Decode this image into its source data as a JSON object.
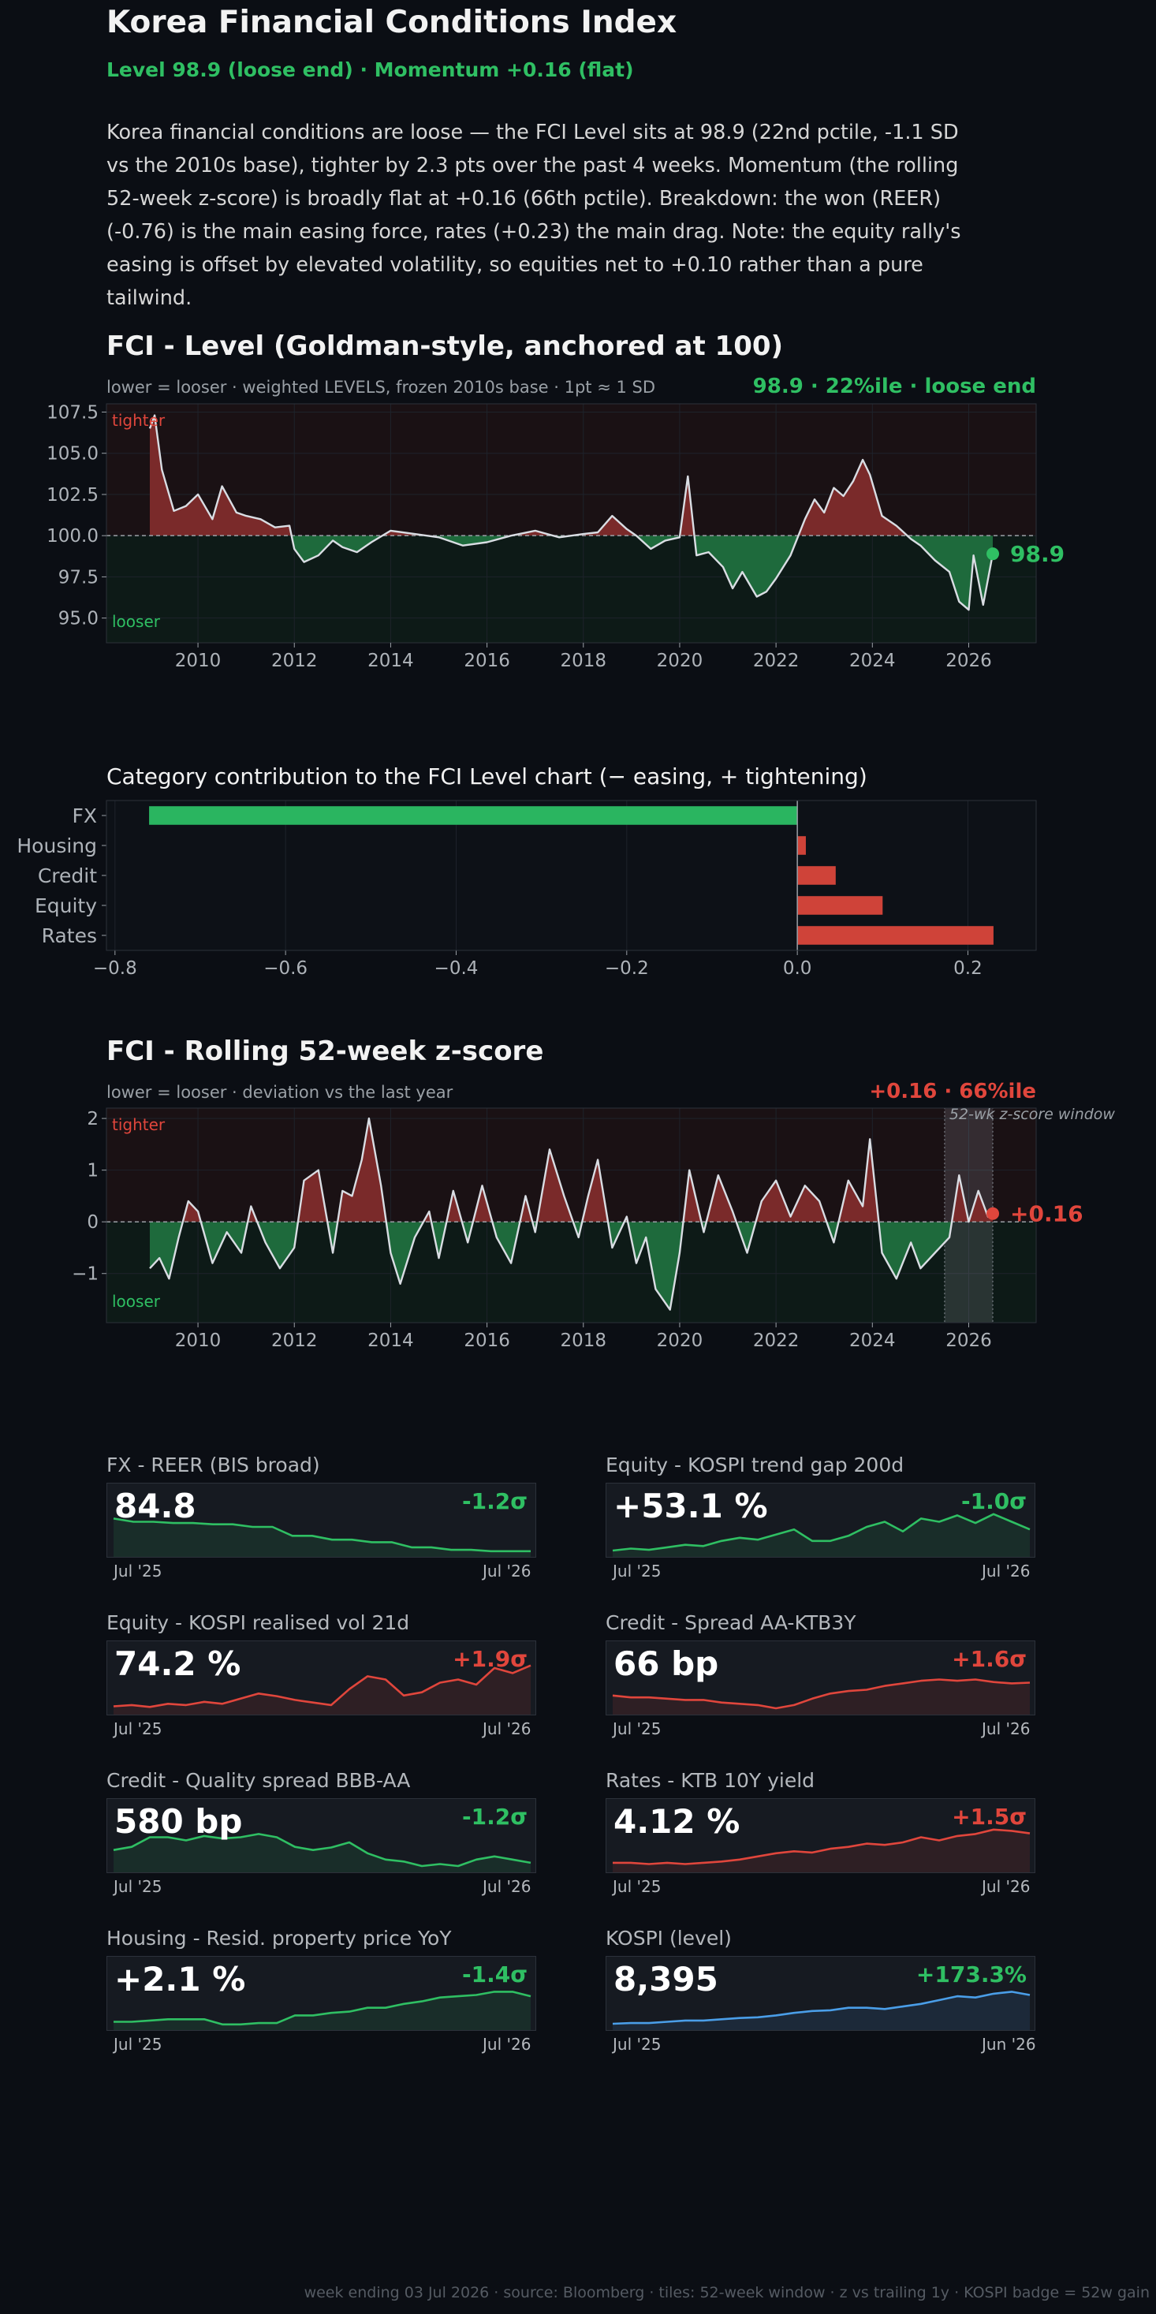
{
  "header": {
    "title": "Korea Financial Conditions Index",
    "subtitle": "Level 98.9 (loose end)   ·   Momentum +0.16 (flat)",
    "summary": "Korea financial conditions are loose — the FCI Level sits at 98.9 (22nd pctile, -1.1 SD vs the 2010s base), tighter by 2.3 pts over the past 4 weeks. Momentum (the rolling 52-week z-score) is broadly flat at +0.16 (66th pctile). Breakdown: the won (REER) (-0.76) is the main easing force, rates (+0.23) the main drag. Note: the equity rally's easing is offset by elevated volatility, so equities net to +0.10 rather than a pure tailwind."
  },
  "colors": {
    "loose": "#2fbf63",
    "tight": "#e0463c",
    "line": "#d9dde3",
    "kospi": "#4a9ee8",
    "background": "#0b0e14"
  },
  "level_chart": {
    "title": "FCI - Level (Goldman-style, anchored at 100)",
    "caption": "lower = looser · weighted LEVELS, frozen 2010s base · 1pt ≈ 1 SD",
    "badge": "98.9 · 22%ile · loose end",
    "tighter_label": "tighter",
    "looser_label": "looser",
    "end_label": "98.9"
  },
  "contrib_chart": {
    "title": "Category contribution to the FCI Level chart  (− easing, + tightening)"
  },
  "z_chart": {
    "title": "FCI - Rolling 52-week z-score",
    "caption": "lower = looser · deviation vs the last year",
    "badge": "+0.16 · 66%ile",
    "tighter_label": "tighter",
    "looser_label": "looser",
    "window_label": "52-wk z-score window",
    "end_label": "+0.16"
  },
  "chart_data": [
    {
      "type": "area",
      "name": "level",
      "title": "FCI - Level (Goldman-style, anchored at 100)",
      "baseline": 100,
      "ylim": [
        93.5,
        108
      ],
      "yticks": [
        "95.0",
        "97.5",
        "100.0",
        "102.5",
        "105.0",
        "107.5"
      ],
      "xlim": [
        2008.1,
        2027.4
      ],
      "xticks": [
        "2010",
        "2012",
        "2014",
        "2016",
        "2018",
        "2020",
        "2022",
        "2024",
        "2026"
      ],
      "x": [
        2009.0,
        2009.1,
        2009.25,
        2009.5,
        2009.75,
        2010.0,
        2010.3,
        2010.5,
        2010.8,
        2011.0,
        2011.3,
        2011.6,
        2011.9,
        2012.0,
        2012.2,
        2012.5,
        2012.8,
        2013.0,
        2013.3,
        2013.6,
        2014.0,
        2014.5,
        2015.0,
        2015.5,
        2016.0,
        2016.5,
        2017.0,
        2017.5,
        2018.0,
        2018.3,
        2018.6,
        2018.9,
        2019.1,
        2019.4,
        2019.7,
        2020.0,
        2020.17,
        2020.35,
        2020.6,
        2020.9,
        2021.1,
        2021.3,
        2021.6,
        2021.8,
        2022.0,
        2022.3,
        2022.6,
        2022.8,
        2023.0,
        2023.2,
        2023.4,
        2023.6,
        2023.8,
        2023.95,
        2024.2,
        2024.5,
        2024.8,
        2025.0,
        2025.3,
        2025.6,
        2025.8,
        2026.0,
        2026.1,
        2026.3,
        2026.5
      ],
      "values": [
        106.5,
        107.3,
        104.0,
        101.5,
        101.8,
        102.5,
        101.0,
        103.0,
        101.4,
        101.2,
        101.0,
        100.5,
        100.6,
        99.2,
        98.4,
        98.8,
        99.7,
        99.3,
        99.0,
        99.6,
        100.3,
        100.1,
        99.9,
        99.4,
        99.6,
        100.0,
        100.3,
        99.9,
        100.1,
        100.2,
        101.2,
        100.4,
        100.0,
        99.2,
        99.7,
        99.9,
        103.6,
        98.8,
        99.0,
        98.1,
        96.8,
        97.8,
        96.3,
        96.6,
        97.4,
        98.8,
        101.0,
        102.2,
        101.4,
        102.9,
        102.4,
        103.3,
        104.6,
        103.7,
        101.2,
        100.6,
        99.8,
        99.4,
        98.5,
        97.8,
        96.0,
        95.5,
        98.8,
        95.8,
        98.9
      ]
    },
    {
      "type": "bar",
      "name": "contribution",
      "title": "Category contribution to the FCI Level chart  (− easing, + tightening)",
      "categories": [
        "FX",
        "Housing",
        "Credit",
        "Equity",
        "Rates"
      ],
      "values": [
        -0.76,
        0.01,
        0.045,
        0.1,
        0.23
      ],
      "xlim": [
        -0.81,
        0.28
      ],
      "xticks": [
        "−0.8",
        "−0.6",
        "−0.4",
        "−0.2",
        "0.0",
        "0.2"
      ]
    },
    {
      "type": "area",
      "name": "zscore",
      "title": "FCI - Rolling 52-week z-score",
      "baseline": 0,
      "ylim": [
        -1.95,
        2.2
      ],
      "yticks": [
        "−1",
        "0",
        "1",
        "2"
      ],
      "xlim": [
        2008.1,
        2027.4
      ],
      "xticks": [
        "2010",
        "2012",
        "2014",
        "2016",
        "2018",
        "2020",
        "2022",
        "2024",
        "2026"
      ],
      "window": [
        2025.5,
        2026.5
      ],
      "x": [
        2009.0,
        2009.2,
        2009.4,
        2009.6,
        2009.8,
        2010.0,
        2010.3,
        2010.6,
        2010.9,
        2011.1,
        2011.4,
        2011.7,
        2012.0,
        2012.2,
        2012.5,
        2012.8,
        2013.0,
        2013.2,
        2013.4,
        2013.55,
        2013.8,
        2014.0,
        2014.2,
        2014.5,
        2014.8,
        2015.0,
        2015.3,
        2015.6,
        2015.9,
        2016.2,
        2016.5,
        2016.8,
        2017.0,
        2017.3,
        2017.6,
        2017.9,
        2018.1,
        2018.3,
        2018.6,
        2018.9,
        2019.1,
        2019.3,
        2019.5,
        2019.8,
        2020.0,
        2020.2,
        2020.5,
        2020.8,
        2021.1,
        2021.4,
        2021.7,
        2022.0,
        2022.3,
        2022.6,
        2022.9,
        2023.2,
        2023.5,
        2023.8,
        2023.95,
        2024.2,
        2024.5,
        2024.8,
        2025.0,
        2025.3,
        2025.6,
        2025.8,
        2026.0,
        2026.2,
        2026.4,
        2026.5
      ],
      "values": [
        -0.9,
        -0.7,
        -1.1,
        -0.3,
        0.4,
        0.2,
        -0.8,
        -0.2,
        -0.6,
        0.3,
        -0.4,
        -0.9,
        -0.5,
        0.8,
        1.0,
        -0.6,
        0.6,
        0.5,
        1.2,
        2.0,
        0.7,
        -0.6,
        -1.2,
        -0.3,
        0.2,
        -0.7,
        0.6,
        -0.4,
        0.7,
        -0.3,
        -0.8,
        0.5,
        -0.2,
        1.4,
        0.5,
        -0.3,
        0.5,
        1.2,
        -0.5,
        0.1,
        -0.8,
        -0.3,
        -1.3,
        -1.7,
        -0.6,
        1.0,
        -0.2,
        0.9,
        0.2,
        -0.6,
        0.4,
        0.8,
        0.1,
        0.7,
        0.4,
        -0.4,
        0.8,
        0.3,
        1.6,
        -0.6,
        -1.1,
        -0.4,
        -0.9,
        -0.6,
        -0.3,
        0.9,
        0.0,
        0.6,
        0.1,
        0.16
      ]
    }
  ],
  "tiles": [
    {
      "title": "FX - REER (BIS broad)",
      "value": "84.8",
      "z": "-1.2σ",
      "x_start": "Jul '25",
      "x_end": "Jul '26",
      "color": "#2fbf63",
      "series": [
        0.55,
        0.5,
        0.5,
        0.48,
        0.48,
        0.46,
        0.46,
        0.42,
        0.42,
        0.28,
        0.28,
        0.22,
        0.22,
        0.18,
        0.18,
        0.1,
        0.1,
        0.06,
        0.06,
        0.04,
        0.04,
        0.04
      ]
    },
    {
      "title": "Equity - KOSPI trend gap 200d",
      "value": "+53.1 %",
      "z": "-1.0σ",
      "x_start": "Jul '25",
      "x_end": "Jul '26",
      "color": "#2fbf63",
      "series": [
        0.05,
        0.08,
        0.06,
        0.1,
        0.14,
        0.12,
        0.2,
        0.25,
        0.22,
        0.3,
        0.38,
        0.2,
        0.2,
        0.28,
        0.42,
        0.5,
        0.35,
        0.55,
        0.5,
        0.6,
        0.48,
        0.62,
        0.5,
        0.38
      ]
    },
    {
      "title": "Equity - KOSPI realised vol 21d",
      "value": "74.2 %",
      "z": "+1.9σ",
      "x_start": "Jul '25",
      "x_end": "Jul '26",
      "color": "#e0463c",
      "series": [
        0.08,
        0.1,
        0.07,
        0.12,
        0.1,
        0.15,
        0.12,
        0.2,
        0.28,
        0.24,
        0.18,
        0.14,
        0.1,
        0.35,
        0.55,
        0.5,
        0.25,
        0.3,
        0.45,
        0.5,
        0.42,
        0.68,
        0.6,
        0.72
      ]
    },
    {
      "title": "Credit - Spread AA-KTB3Y",
      "value": "66 bp",
      "z": "+1.6σ",
      "x_start": "Jul '25",
      "x_end": "Jul '26",
      "color": "#e0463c",
      "series": [
        0.25,
        0.22,
        0.22,
        0.2,
        0.18,
        0.18,
        0.14,
        0.12,
        0.1,
        0.05,
        0.1,
        0.2,
        0.28,
        0.32,
        0.34,
        0.4,
        0.44,
        0.48,
        0.5,
        0.48,
        0.5,
        0.46,
        0.44,
        0.45
      ]
    },
    {
      "title": "Credit - Quality spread BBB-AA",
      "value": "580 bp",
      "z": "-1.2σ",
      "x_start": "Jul '25",
      "x_end": "Jul '26",
      "color": "#2fbf63",
      "series": [
        0.3,
        0.35,
        0.5,
        0.5,
        0.45,
        0.52,
        0.48,
        0.5,
        0.55,
        0.5,
        0.35,
        0.3,
        0.34,
        0.42,
        0.25,
        0.15,
        0.12,
        0.05,
        0.08,
        0.05,
        0.15,
        0.2,
        0.15,
        0.1
      ]
    },
    {
      "title": "Rates - KTB 10Y yield",
      "value": "4.12 %",
      "z": "+1.5σ",
      "x_start": "Jul '25",
      "x_end": "Jul '26",
      "color": "#e0463c",
      "series": [
        0.1,
        0.1,
        0.08,
        0.1,
        0.08,
        0.1,
        0.12,
        0.15,
        0.2,
        0.25,
        0.28,
        0.26,
        0.32,
        0.35,
        0.4,
        0.38,
        0.42,
        0.5,
        0.45,
        0.52,
        0.55,
        0.62,
        0.6,
        0.56
      ]
    },
    {
      "title": "Housing - Resid. property price YoY",
      "value": "+2.1 %",
      "z": "-1.4σ",
      "x_start": "Jul '25",
      "x_end": "Jul '26",
      "color": "#2fbf63",
      "series": [
        0.08,
        0.08,
        0.1,
        0.12,
        0.12,
        0.12,
        0.04,
        0.04,
        0.06,
        0.06,
        0.18,
        0.18,
        0.22,
        0.24,
        0.3,
        0.3,
        0.36,
        0.4,
        0.46,
        0.48,
        0.5,
        0.55,
        0.55,
        0.48
      ]
    },
    {
      "title": "KOSPI (level)",
      "value": "8,395",
      "z": "+173.3%",
      "x_start": "Jul '25",
      "x_end": "Jun '26",
      "color": "#4a9ee8",
      "series": [
        0.05,
        0.06,
        0.06,
        0.08,
        0.1,
        0.1,
        0.12,
        0.14,
        0.15,
        0.18,
        0.22,
        0.25,
        0.26,
        0.3,
        0.3,
        0.28,
        0.32,
        0.36,
        0.42,
        0.48,
        0.46,
        0.52,
        0.55,
        0.5
      ]
    }
  ],
  "tile_badge_colors": [
    "#2fbf63",
    "#2fbf63",
    "#e0463c",
    "#e0463c",
    "#2fbf63",
    "#e0463c",
    "#2fbf63",
    "#2fbf63"
  ],
  "footer": "week ending 03 Jul 2026  ·  source: Bloomberg  ·  tiles: 52-week window · z vs trailing 1y · KOSPI badge = 52w gain"
}
